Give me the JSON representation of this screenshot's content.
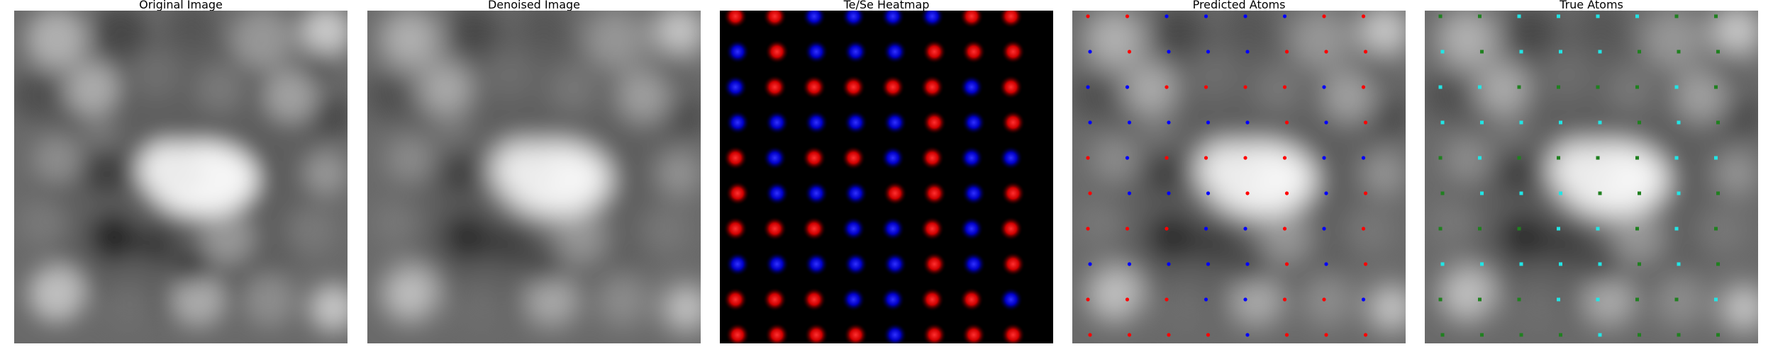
{
  "panels": [
    {
      "title": "Original Image"
    },
    {
      "title": "Denoised Image"
    },
    {
      "title": "Te/Se Heatmap"
    },
    {
      "title": "Predicted Atoms"
    },
    {
      "title": "True Atoms"
    }
  ],
  "colors": {
    "red": "#ff0000",
    "blue": "#0000ff",
    "cyan": "#22e5e5",
    "green": "#208020",
    "heatmap_bg": "#000000"
  },
  "grid": {
    "heatmap": [
      "RRBBBBRR",
      "BRBBBRRR",
      "BRRRRRBR",
      "BBBBBRBR",
      "RBRRBRBB",
      "RBBBRRBR",
      "RRRBBRBR",
      "BBBBBRBR",
      "RRRBBRRB",
      "RRRRBRRR"
    ],
    "predicted": [
      "RRBBBBRR",
      "BRBBBRRR",
      "BBRRRRBR",
      "BBBBBRBR",
      "RBRRRRBB",
      "RBBBRRBR",
      "RRRBBRBR",
      "BBBBBRBR",
      "RRRBBRRB",
      "RRRRBRRR"
    ],
    "true": [
      "GGCCCCGG",
      "CGCCCGGG",
      "CCGGGGCG",
      "CCCCCGCG",
      "GCGGGGCC",
      "GCCCGGCG",
      "GGGCCGCG",
      "CCCCCGCG",
      "GGGCCGGC",
      "GGGGCGGG"
    ]
  }
}
